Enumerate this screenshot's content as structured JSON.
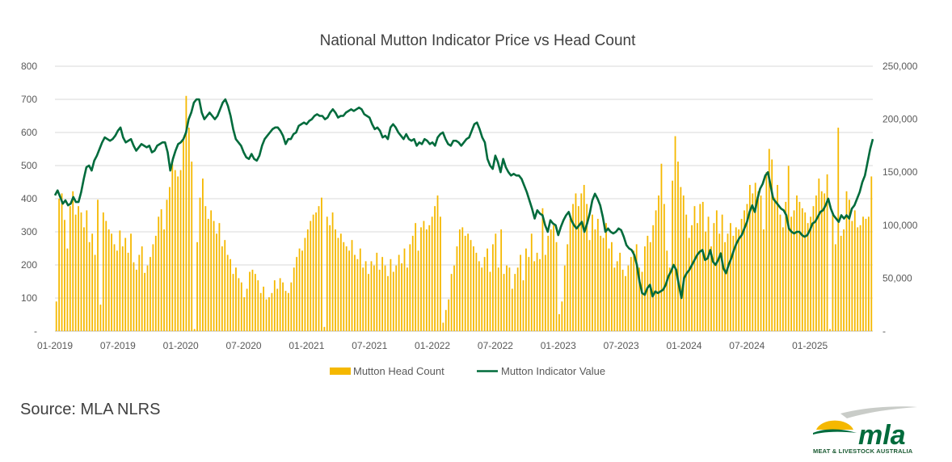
{
  "chart_data": {
    "type": "bar+line",
    "title": "National Mutton Indicator Price vs Head Count",
    "left_axis": {
      "min": 0,
      "max": 800,
      "ticks": [
        "-",
        "100",
        "200",
        "300",
        "400",
        "500",
        "600",
        "700",
        "800"
      ]
    },
    "right_axis": {
      "min": 0,
      "max": 250000,
      "ticks": [
        "-",
        "50,000",
        "100,000",
        "150,000",
        "200,000",
        "250,000"
      ]
    },
    "x_tick_labels": [
      "01-2019",
      "07-2019",
      "01-2020",
      "07-2020",
      "01-2021",
      "07-2021",
      "01-2022",
      "07-2022",
      "01-2023",
      "07-2023",
      "01-2024",
      "07-2024",
      "01-2025"
    ],
    "x_start": "2019-01",
    "x_end": "2025-07",
    "legend": {
      "position": "bottom",
      "entries": [
        "Mutton Head Count",
        "Mutton Indicator Value"
      ]
    },
    "series": [
      {
        "name": "Mutton Head Count",
        "axis": "right",
        "kind": "bar",
        "color": "#f5b800",
        "values": [
          28000,
          125000,
          130000,
          105000,
          78000,
          118000,
          132000,
          110000,
          118000,
          112000,
          98000,
          114000,
          84000,
          92000,
          72000,
          124000,
          25000,
          112000,
          104000,
          96000,
          92000,
          82000,
          76000,
          95000,
          80000,
          88000,
          74000,
          92000,
          65000,
          58000,
          72000,
          80000,
          55000,
          62000,
          70000,
          82000,
          90000,
          108000,
          115000,
          96000,
          124000,
          136000,
          158000,
          152000,
          146000,
          152000,
          180000,
          222000,
          192000,
          160000,
          2000,
          84000,
          126000,
          144000,
          118000,
          106000,
          114000,
          104000,
          92000,
          102000,
          80000,
          86000,
          72000,
          68000,
          54000,
          60000,
          50000,
          46000,
          32000,
          40000,
          56000,
          58000,
          54000,
          48000,
          36000,
          42000,
          30000,
          32000,
          36000,
          48000,
          40000,
          50000,
          46000,
          38000,
          36000,
          46000,
          60000,
          70000,
          78000,
          76000,
          88000,
          96000,
          104000,
          110000,
          112000,
          118000,
          126000,
          4000,
          108000,
          100000,
          112000,
          96000,
          88000,
          92000,
          84000,
          80000,
          76000,
          86000,
          72000,
          68000,
          78000,
          60000,
          66000,
          54000,
          66000,
          62000,
          74000,
          58000,
          70000,
          62000,
          52000,
          68000,
          56000,
          62000,
          72000,
          64000,
          78000,
          60000,
          82000,
          90000,
          102000,
          76000,
          98000,
          104000,
          96000,
          100000,
          108000,
          118000,
          128000,
          108000,
          8000,
          20000,
          30000,
          54000,
          62000,
          80000,
          96000,
          98000,
          90000,
          92000,
          86000,
          80000,
          74000,
          66000,
          60000,
          70000,
          78000,
          56000,
          82000,
          92000,
          60000,
          96000,
          54000,
          62000,
          60000,
          40000,
          54000,
          60000,
          72000,
          48000,
          78000,
          70000,
          92000,
          66000,
          74000,
          68000,
          116000,
          72000,
          90000,
          96000,
          100000,
          84000,
          16000,
          28000,
          62000,
          82000,
          106000,
          120000,
          130000,
          118000,
          130000,
          138000,
          120000,
          86000,
          110000,
          96000,
          106000,
          90000,
          88000,
          102000,
          78000,
          84000,
          60000,
          66000,
          74000,
          58000,
          52000,
          62000,
          70000,
          76000,
          82000,
          60000,
          56000,
          80000,
          90000,
          84000,
          100000,
          114000,
          128000,
          158000,
          120000,
          76000,
          60000,
          142000,
          184000,
          160000,
          136000,
          128000,
          110000,
          88000,
          100000,
          118000,
          102000,
          120000,
          122000,
          94000,
          108000,
          80000,
          102000,
          114000,
          92000,
          110000,
          84000,
          92000,
          102000,
          90000,
          98000,
          96000,
          106000,
          114000,
          120000,
          138000,
          130000,
          140000,
          132000,
          128000,
          96000,
          150000,
          172000,
          162000,
          126000,
          138000,
          110000,
          98000,
          122000,
          156000,
          108000,
          114000,
          128000,
          122000,
          116000,
          112000,
          102000,
          108000,
          118000,
          128000,
          144000,
          132000,
          130000,
          148000,
          2000,
          110000,
          82000,
          192000,
          90000,
          96000,
          132000,
          124000,
          104000,
          114000,
          98000,
          100000,
          108000,
          106000,
          108000,
          146000
        ]
      },
      {
        "name": "Mutton Indicator Value",
        "axis": "left",
        "kind": "line",
        "color": "#006b3c",
        "values": [
          410,
          425,
          405,
          385,
          395,
          380,
          385,
          405,
          390,
          390,
          420,
          460,
          495,
          500,
          485,
          515,
          530,
          550,
          570,
          585,
          580,
          575,
          580,
          590,
          605,
          615,
          585,
          570,
          575,
          580,
          560,
          545,
          555,
          565,
          560,
          555,
          560,
          540,
          545,
          560,
          565,
          570,
          570,
          540,
          485,
          520,
          545,
          565,
          570,
          580,
          600,
          640,
          660,
          690,
          700,
          700,
          660,
          640,
          650,
          660,
          650,
          640,
          650,
          670,
          690,
          700,
          680,
          650,
          610,
          580,
          570,
          560,
          540,
          525,
          520,
          535,
          520,
          515,
          530,
          560,
          580,
          590,
          600,
          610,
          615,
          615,
          605,
          590,
          565,
          580,
          580,
          595,
          600,
          620,
          625,
          630,
          625,
          635,
          640,
          650,
          655,
          650,
          650,
          640,
          645,
          660,
          670,
          660,
          645,
          650,
          650,
          660,
          665,
          670,
          665,
          670,
          675,
          670,
          655,
          650,
          645,
          625,
          610,
          615,
          605,
          585,
          590,
          580,
          615,
          625,
          615,
          600,
          590,
          580,
          595,
          580,
          575,
          580,
          560,
          570,
          565,
          580,
          575,
          565,
          570,
          560,
          585,
          595,
          600,
          580,
          565,
          560,
          575,
          575,
          570,
          560,
          570,
          580,
          585,
          605,
          625,
          630,
          610,
          585,
          570,
          520,
          500,
          490,
          530,
          510,
          480,
          520,
          495,
          480,
          470,
          475,
          470,
          470,
          460,
          440,
          420,
          395,
          370,
          340,
          365,
          355,
          350,
          320,
          300,
          335,
          325,
          320,
          290,
          315,
          335,
          350,
          360,
          335,
          320,
          310,
          320,
          330,
          300,
          325,
          355,
          395,
          415,
          400,
          380,
          345,
          300,
          310,
          300,
          295,
          300,
          310,
          305,
          285,
          260,
          250,
          245,
          230,
          200,
          150,
          115,
          110,
          130,
          140,
          105,
          120,
          115,
          120,
          125,
          140,
          165,
          180,
          200,
          185,
          140,
          100,
          160,
          175,
          185,
          200,
          215,
          230,
          240,
          245,
          215,
          220,
          245,
          210,
          200,
          215,
          235,
          190,
          175,
          200,
          220,
          245,
          265,
          280,
          290,
          310,
          330,
          360,
          380,
          360,
          400,
          430,
          445,
          470,
          480,
          440,
          400,
          390,
          380,
          370,
          365,
          350,
          310,
          300,
          295,
          300,
          300,
          290,
          285,
          290,
          305,
          325,
          330,
          345,
          360,
          365,
          380,
          400,
          370,
          350,
          340,
          330,
          350,
          340,
          350,
          340,
          370,
          380,
          400,
          420,
          450,
          470,
          510,
          550,
          580
        ]
      }
    ]
  },
  "source_text": "Source: MLA NLRS",
  "logo": {
    "text": "mla",
    "subtitle": "MEAT & LIVESTOCK AUSTRALIA"
  }
}
